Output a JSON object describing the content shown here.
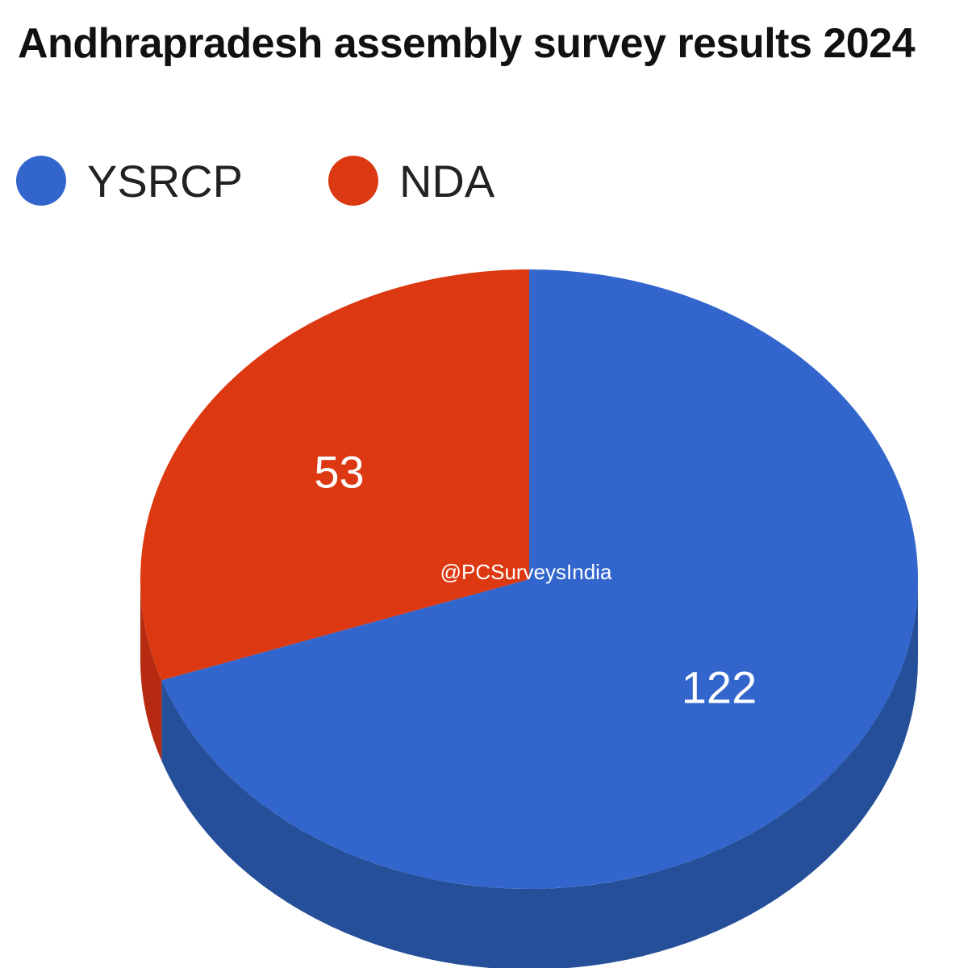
{
  "chart_data": {
    "type": "pie",
    "title": "Andhrapradesh assembly survey results 2024",
    "categories": [
      "YSRCP",
      "NDA"
    ],
    "values": [
      122,
      53
    ],
    "colors": [
      "#3366cc",
      "#dc3912"
    ],
    "side_colors": [
      "#254f99",
      "#b52a10"
    ],
    "legend_position": "top-left",
    "data_labels": [
      "122",
      "53"
    ],
    "style": "3d"
  },
  "legend": {
    "items": [
      {
        "label": "YSRCP",
        "color": "#3366cc"
      },
      {
        "label": "NDA",
        "color": "#dc3912"
      }
    ]
  },
  "watermark": "@PCSurveysIndia"
}
